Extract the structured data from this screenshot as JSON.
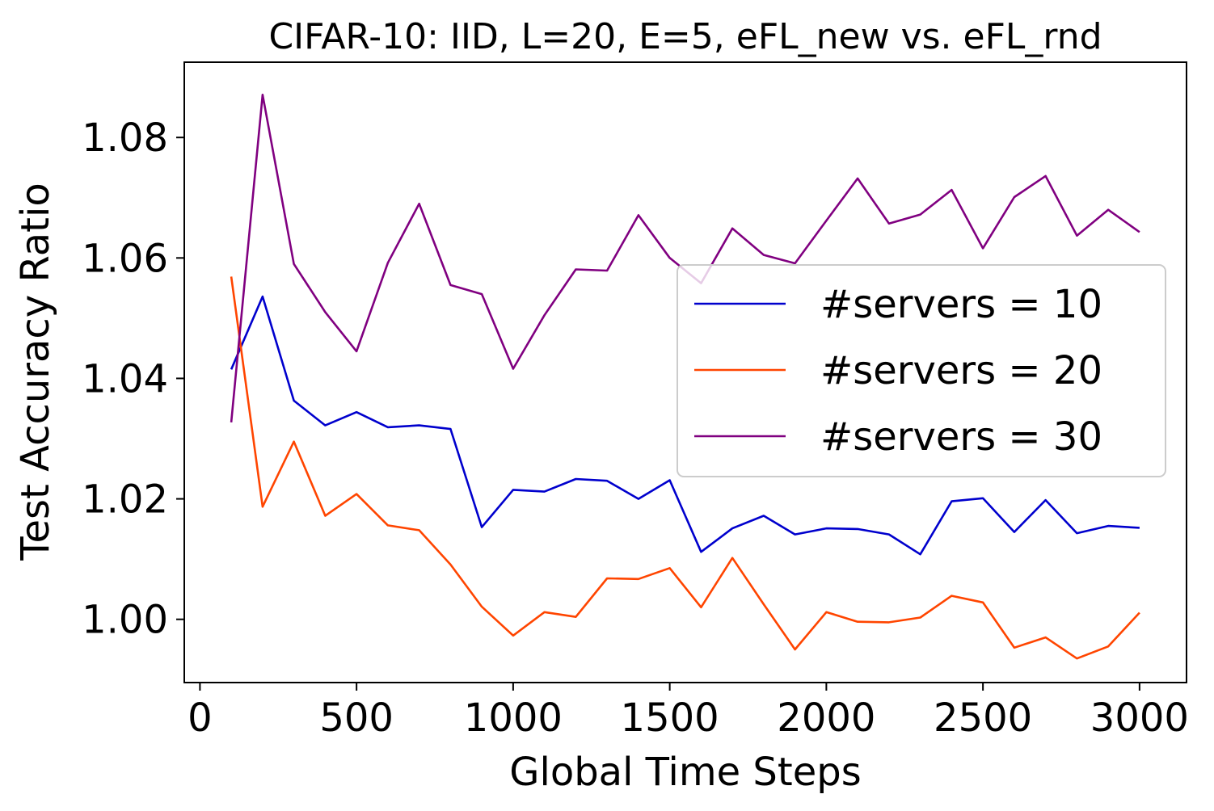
{
  "chart_data": {
    "type": "line",
    "title": "CIFAR-10: IID, L=20, E=5, eFL_new vs. eFL_rnd",
    "xlabel": "Global Time Steps",
    "ylabel": "Test Accuracy Ratio",
    "xlim": [
      -50,
      3150
    ],
    "ylim": [
      0.9895,
      1.0925
    ],
    "xticks": [
      0,
      500,
      1000,
      1500,
      2000,
      2500,
      3000
    ],
    "xtick_labels": [
      "0",
      "500",
      "1000",
      "1500",
      "2000",
      "2500",
      "3000"
    ],
    "yticks": [
      1.0,
      1.02,
      1.04,
      1.06,
      1.08
    ],
    "ytick_labels": [
      "1.00",
      "1.02",
      "1.04",
      "1.06",
      "1.08"
    ],
    "grid": false,
    "legend_position": "center-right",
    "x": [
      100,
      200,
      300,
      400,
      500,
      600,
      700,
      800,
      900,
      1000,
      1100,
      1200,
      1300,
      1400,
      1500,
      1600,
      1700,
      1800,
      1900,
      2000,
      2100,
      2200,
      2300,
      2400,
      2500,
      2600,
      2700,
      2800,
      2900,
      3000
    ],
    "series": [
      {
        "name": "#servers = 10",
        "color": "#0000cd",
        "values": [
          1.0415,
          1.0536,
          1.0363,
          1.0322,
          1.0344,
          1.0319,
          1.0322,
          1.0316,
          1.0153,
          1.0215,
          1.0212,
          1.0233,
          1.023,
          1.02,
          1.0231,
          1.0112,
          1.0151,
          1.0172,
          1.0141,
          1.0151,
          1.015,
          1.0141,
          1.0108,
          1.0196,
          1.0201,
          1.0145,
          1.0198,
          1.0143,
          1.0155,
          1.0152
        ]
      },
      {
        "name": "#servers = 20",
        "color": "#ff4500",
        "values": [
          1.0569,
          1.0187,
          1.0295,
          1.0172,
          1.0208,
          1.0156,
          1.0148,
          1.0091,
          1.0021,
          0.9973,
          1.0012,
          1.0004,
          1.0068,
          1.0067,
          1.0085,
          1.002,
          1.0102,
          1.0025,
          0.995,
          1.0012,
          0.9996,
          0.9995,
          1.0003,
          1.0039,
          1.0028,
          0.9953,
          0.997,
          0.9935,
          0.9955,
          1.0011
        ]
      },
      {
        "name": "#servers = 30",
        "color": "#800080",
        "values": [
          1.0327,
          1.0871,
          1.059,
          1.051,
          1.0445,
          1.0592,
          1.069,
          1.0555,
          1.054,
          1.0416,
          1.0505,
          1.0581,
          1.0579,
          1.0671,
          1.06,
          1.0558,
          1.0649,
          1.0605,
          1.0591,
          1.0662,
          1.0732,
          1.0657,
          1.0672,
          1.0713,
          1.0616,
          1.0701,
          1.0736,
          1.0637,
          1.068,
          1.0643
        ]
      }
    ]
  }
}
